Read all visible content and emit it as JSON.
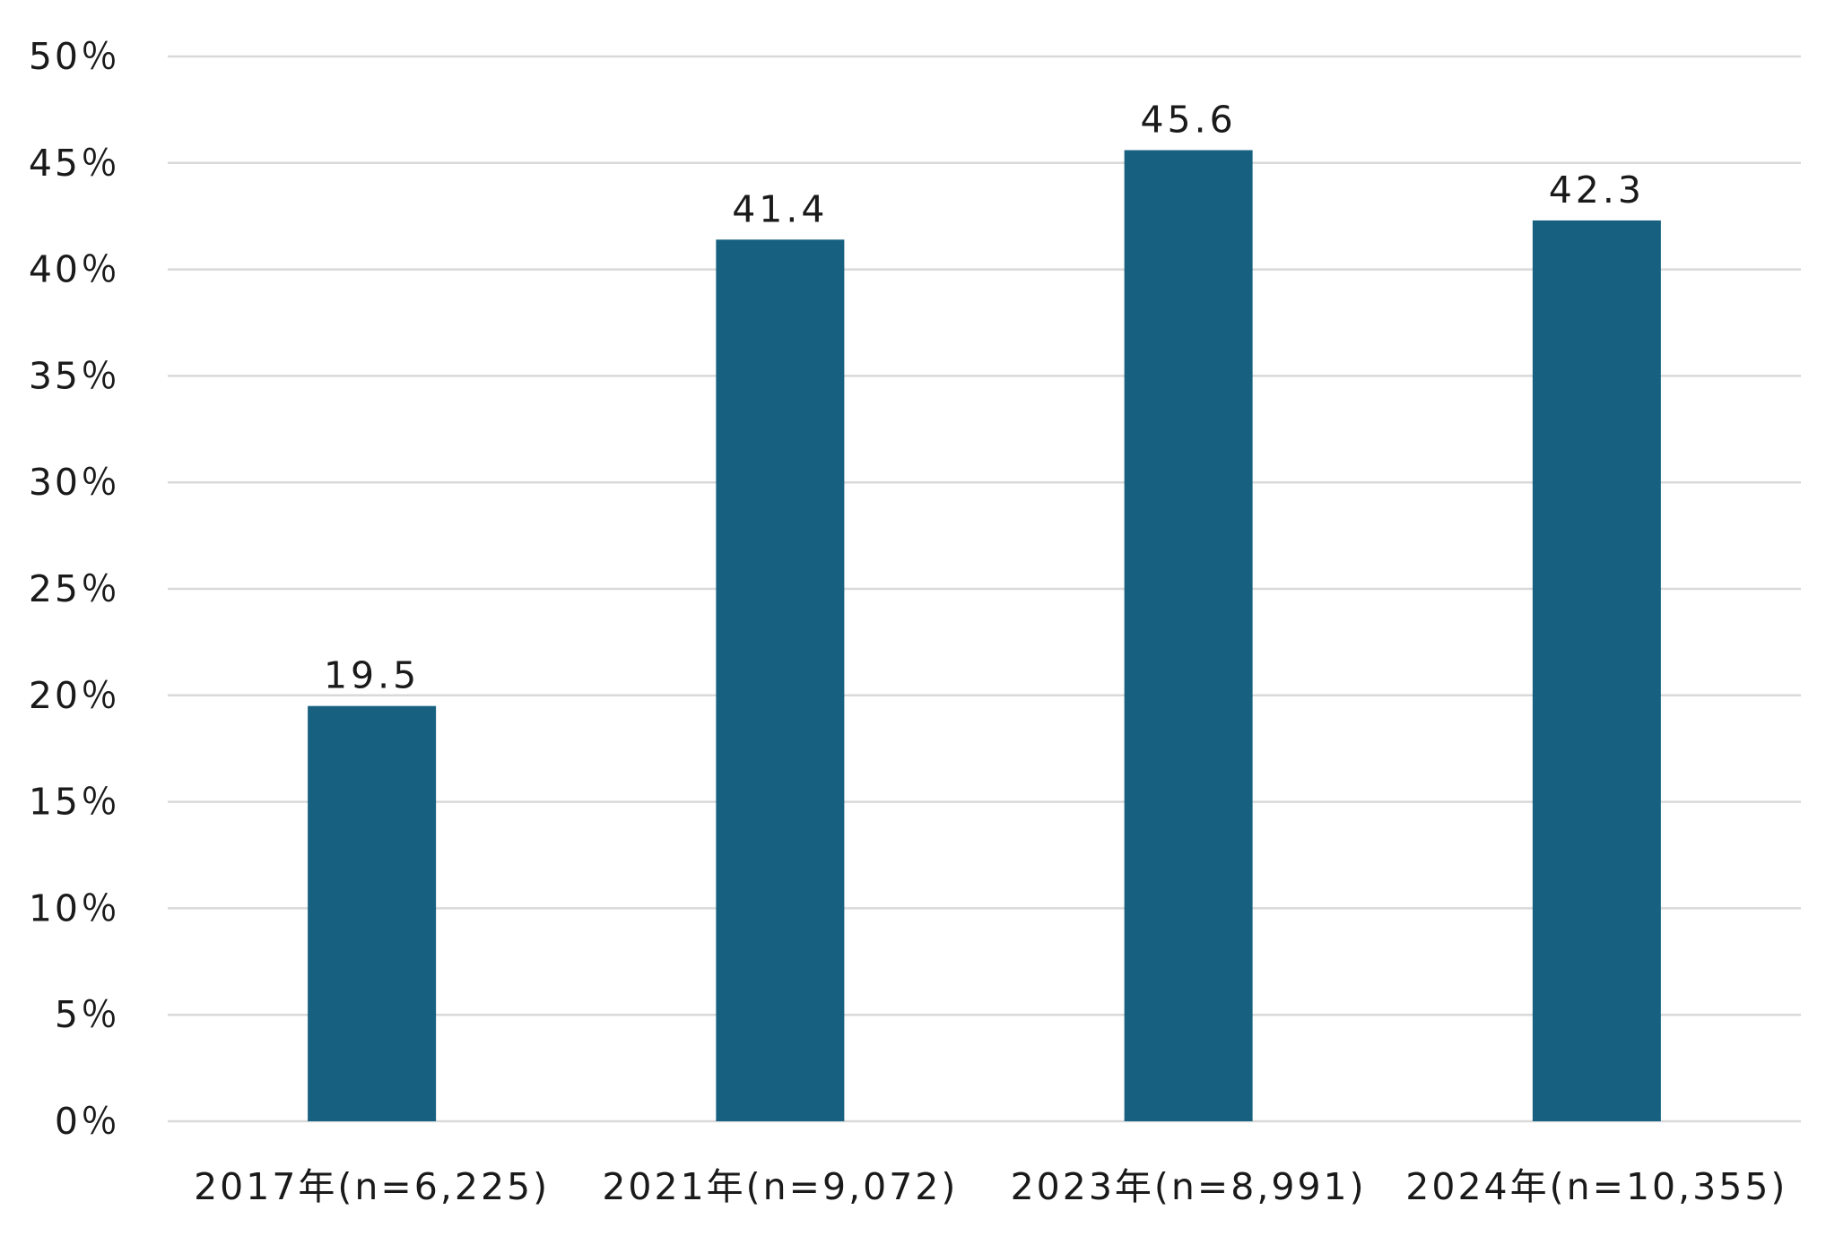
{
  "chart_data": {
    "type": "bar",
    "title": "",
    "xlabel": "",
    "ylabel": "",
    "categories": [
      "2017年(n=6,225)",
      "2021年(n=9,072)",
      "2023年(n=8,991)",
      "2024年(n=10,355)"
    ],
    "values": [
      19.5,
      41.4,
      45.6,
      42.3
    ],
    "data_labels": [
      "19.5",
      "41.4",
      "45.6",
      "42.3"
    ],
    "ylim": [
      0,
      50
    ],
    "y_ticks": [
      0,
      5,
      10,
      15,
      20,
      25,
      30,
      35,
      40,
      45,
      50
    ],
    "y_tick_labels": [
      "0％",
      "5％",
      "10％",
      "15％",
      "20％",
      "25％",
      "30％",
      "35％",
      "40％",
      "45％",
      "50％"
    ],
    "grid": true,
    "legend": "none",
    "bar_color": "#17607f"
  }
}
